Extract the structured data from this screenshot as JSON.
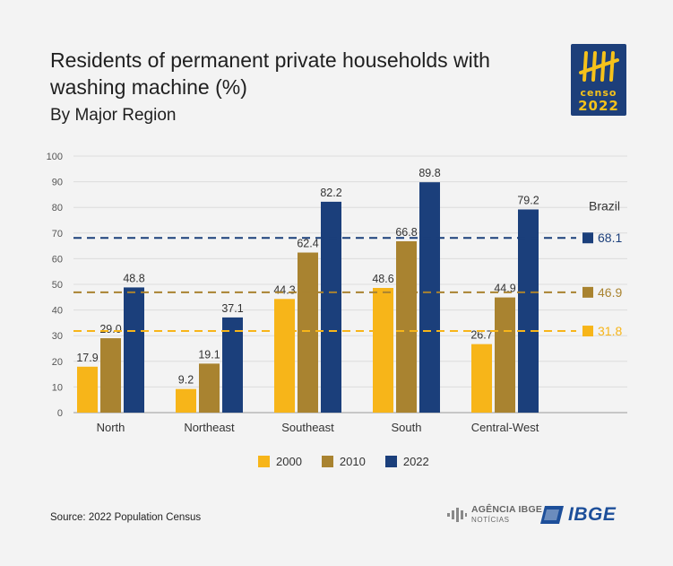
{
  "title": "Residents of permanent private households with washing machine (%)",
  "subtitle": "By Major Region",
  "logo": {
    "line1": "censo",
    "line2": "2022"
  },
  "source": "Source: 2022 Population Census",
  "footer_logos": {
    "agencia_main": "AGÊNCIA IBGE",
    "agencia_sub": "NOTÍCIAS",
    "ibge": "IBGE"
  },
  "colors": {
    "s2000": "#f7b519",
    "s2010": "#a98330",
    "s2022": "#1b3f7b"
  },
  "chart_data": {
    "type": "bar",
    "categories": [
      "North",
      "Northeast",
      "Southeast",
      "South",
      "Central-West"
    ],
    "series": [
      {
        "name": "2000",
        "values": [
          17.9,
          9.2,
          44.3,
          48.6,
          26.7
        ]
      },
      {
        "name": "2010",
        "values": [
          29.0,
          19.1,
          62.4,
          66.8,
          44.9
        ]
      },
      {
        "name": "2022",
        "values": [
          48.8,
          37.1,
          82.2,
          89.8,
          79.2
        ]
      }
    ],
    "value_labels": [
      [
        "17.9",
        "9.2",
        "44.3",
        "48.6",
        "26.7"
      ],
      [
        "29.0",
        "19.1",
        "62.4",
        "66.8",
        "44.9"
      ],
      [
        "48.8",
        "37.1",
        "82.2",
        "89.8",
        "79.2"
      ]
    ],
    "yticks": [
      "0",
      "10",
      "20",
      "30",
      "40",
      "50",
      "60",
      "70",
      "80",
      "90",
      "100"
    ],
    "ylim": [
      0,
      100
    ],
    "grid": true,
    "legend": "bottom-center",
    "reference_title": "Brazil",
    "reference_lines": [
      {
        "series": "2022",
        "value": 68.1,
        "label": "68.1"
      },
      {
        "series": "2010",
        "value": 46.9,
        "label": "46.9"
      },
      {
        "series": "2000",
        "value": 31.8,
        "label": "31.8"
      }
    ]
  }
}
